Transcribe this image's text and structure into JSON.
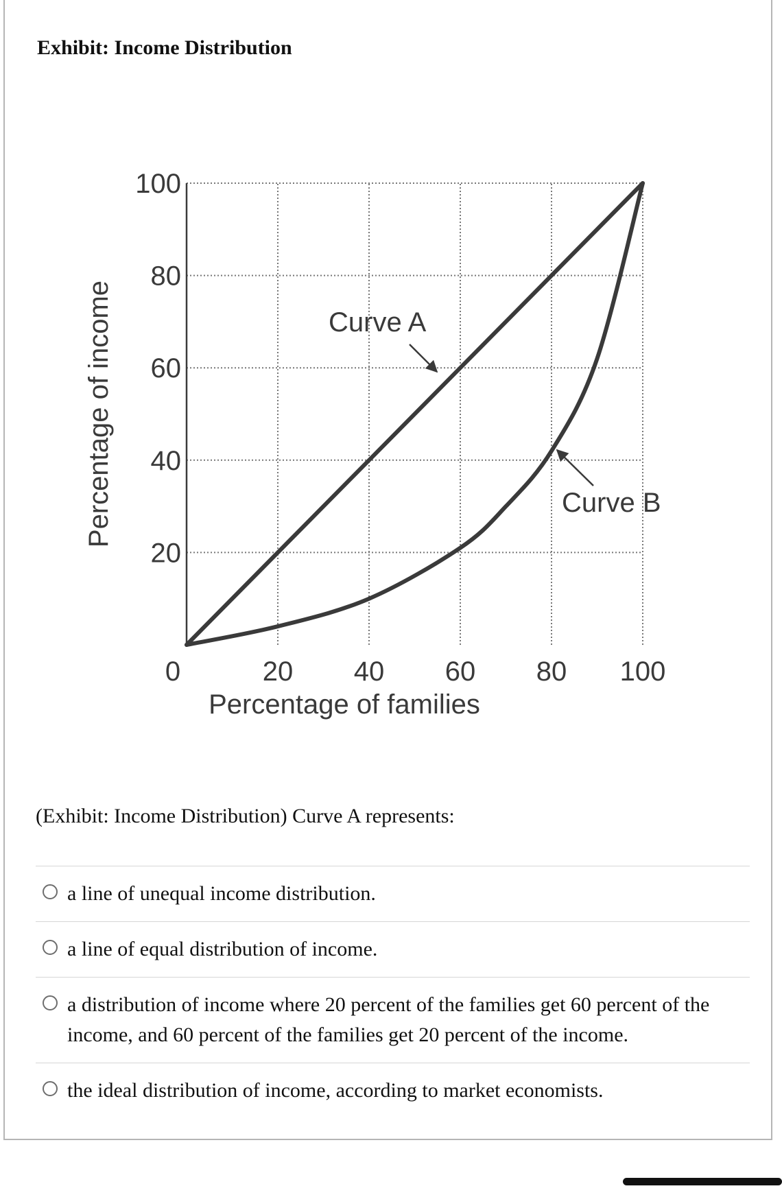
{
  "exhibit_title": "Exhibit: Income Distribution",
  "question": "(Exhibit: Income Distribution) Curve A represents:",
  "options": [
    "a line of unequal income distribution.",
    "a line of equal distribution of income.",
    "a distribution of income where 20 percent of the families get 60 percent of the income, and 60 percent of the families get 20 percent of the income.",
    "the ideal distribution of income, according to market economists."
  ],
  "selected_option": null,
  "chart_data": {
    "type": "line",
    "xlabel": "Percentage of families",
    "ylabel": "Percentage of income",
    "xlim": [
      0,
      100
    ],
    "ylim": [
      0,
      100
    ],
    "x_ticks": [
      "20",
      "40",
      "60",
      "80",
      "100"
    ],
    "y_ticks": [
      "20",
      "40",
      "60",
      "80",
      "100"
    ],
    "origin_label": "0",
    "grid": true,
    "series": [
      {
        "name": "Curve A",
        "x": [
          0,
          20,
          40,
          60,
          80,
          100
        ],
        "y": [
          0,
          20,
          40,
          60,
          80,
          100
        ]
      },
      {
        "name": "Curve B",
        "x": [
          0,
          20,
          40,
          60,
          70,
          80,
          90,
          100
        ],
        "y": [
          0,
          4,
          10,
          21,
          30,
          42,
          62,
          100
        ]
      }
    ],
    "annotations": [
      "Curve A",
      "Curve B"
    ]
  }
}
